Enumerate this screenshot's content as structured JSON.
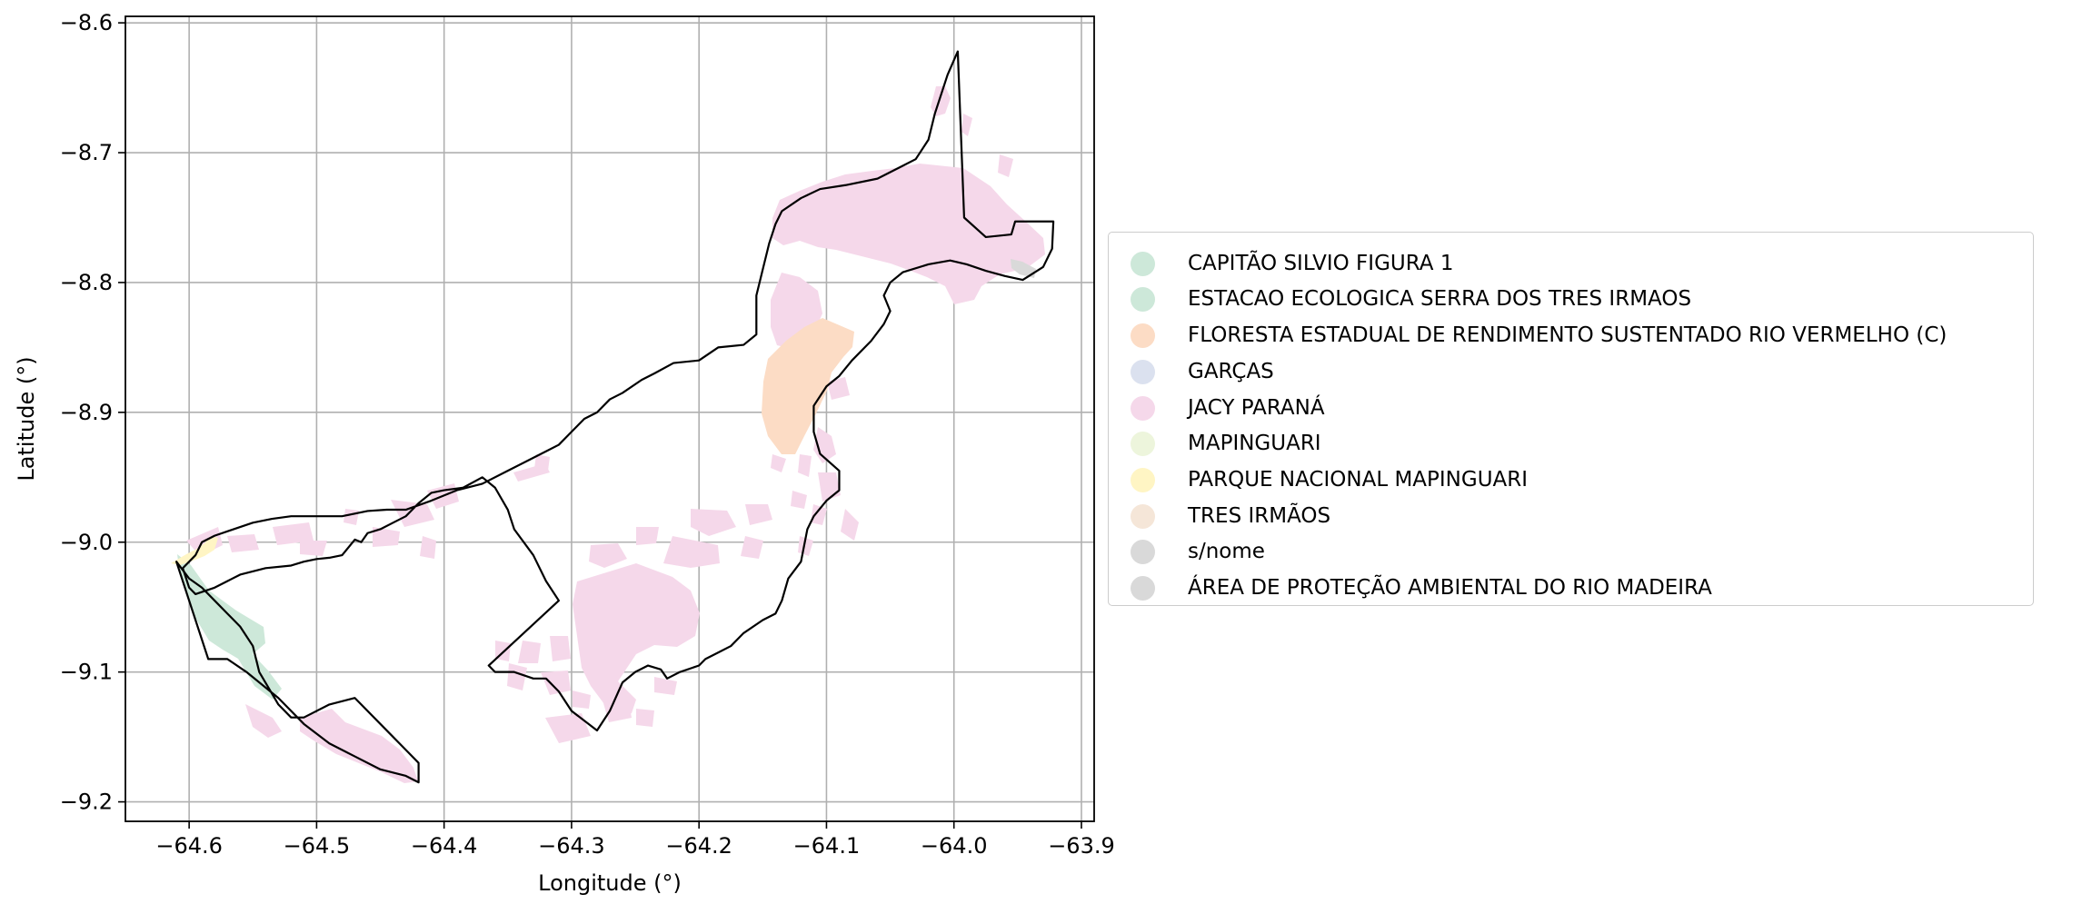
{
  "chart_data": {
    "type": "map",
    "xlabel": "Longitude (°)",
    "ylabel": "Latitude (°)",
    "xlim": [
      -64.65,
      -63.89
    ],
    "ylim": [
      -9.215,
      -8.595
    ],
    "xticks": [
      -64.6,
      -64.5,
      -64.4,
      -64.3,
      -64.2,
      -64.1,
      -64.0,
      -63.9
    ],
    "yticks": [
      -8.6,
      -8.7,
      -8.8,
      -8.9,
      -9.0,
      -9.1,
      -9.2
    ],
    "xtick_labels": [
      "−64.6",
      "−64.5",
      "−64.4",
      "−64.3",
      "−64.2",
      "−64.1",
      "−64.0",
      "−63.9"
    ],
    "ytick_labels": [
      "−8.6",
      "−8.7",
      "−8.8",
      "−8.9",
      "−9.0",
      "−9.1",
      "−9.2"
    ],
    "grid": true,
    "legend_position": "right",
    "legend": [
      {
        "label": "CAPITÃO SILVIO FIGURA 1",
        "color": "#cde8d9"
      },
      {
        "label": "ESTACAO ECOLOGICA SERRA DOS TRES IRMAOS",
        "color": "#cde8d9"
      },
      {
        "label": "FLORESTA ESTADUAL DE RENDIMENTO SUSTENTADO RIO VERMELHO (C)",
        "color": "#fcdcc5"
      },
      {
        "label": "GARÇAS",
        "color": "#dbe1ef"
      },
      {
        "label": "JACY PARANÁ",
        "color": "#f5d8ea"
      },
      {
        "label": "MAPINGUARI",
        "color": "#edf5dc"
      },
      {
        "label": "PARQUE NACIONAL MAPINGUARI",
        "color": "#fff5c4"
      },
      {
        "label": "TRES IRMÃOS",
        "color": "#f5e6d8"
      },
      {
        "label": "s/nome",
        "color": "#d9d9d9"
      },
      {
        "label": "ÁREA DE PROTEÇÃO AMBIENTAL DO RIO MADEIRA",
        "color": "#d9d9d9"
      }
    ],
    "boundary_polygons": [
      [
        [
          -63.997,
          -8.622
        ],
        [
          -63.992,
          -8.75
        ],
        [
          -63.975,
          -8.765
        ],
        [
          -63.955,
          -8.763
        ],
        [
          -63.952,
          -8.753
        ],
        [
          -63.922,
          -8.753
        ],
        [
          -63.923,
          -8.774
        ],
        [
          -63.93,
          -8.788
        ],
        [
          -63.946,
          -8.798
        ],
        [
          -63.96,
          -8.795
        ],
        [
          -63.975,
          -8.791
        ],
        [
          -63.99,
          -8.786
        ],
        [
          -64.003,
          -8.783
        ],
        [
          -64.02,
          -8.786
        ],
        [
          -64.04,
          -8.792
        ],
        [
          -64.05,
          -8.8
        ],
        [
          -64.055,
          -8.81
        ],
        [
          -64.05,
          -8.822
        ],
        [
          -64.055,
          -8.832
        ],
        [
          -64.065,
          -8.845
        ],
        [
          -64.08,
          -8.86
        ],
        [
          -64.09,
          -8.872
        ],
        [
          -64.1,
          -8.88
        ],
        [
          -64.11,
          -8.895
        ],
        [
          -64.11,
          -8.915
        ],
        [
          -64.105,
          -8.932
        ],
        [
          -64.09,
          -8.945
        ],
        [
          -64.09,
          -8.96
        ],
        [
          -64.1,
          -8.968
        ],
        [
          -64.11,
          -8.98
        ],
        [
          -64.115,
          -8.99
        ],
        [
          -64.12,
          -9.015
        ],
        [
          -64.13,
          -9.028
        ],
        [
          -64.135,
          -9.045
        ],
        [
          -64.14,
          -9.055
        ],
        [
          -64.15,
          -9.06
        ],
        [
          -64.165,
          -9.07
        ],
        [
          -64.175,
          -9.08
        ],
        [
          -64.185,
          -9.085
        ],
        [
          -64.195,
          -9.09
        ],
        [
          -64.2,
          -9.095
        ],
        [
          -64.215,
          -9.1
        ],
        [
          -64.225,
          -9.105
        ],
        [
          -64.23,
          -9.098
        ],
        [
          -64.24,
          -9.095
        ],
        [
          -64.25,
          -9.1
        ],
        [
          -64.26,
          -9.108
        ],
        [
          -64.27,
          -9.13
        ],
        [
          -64.28,
          -9.145
        ],
        [
          -64.3,
          -9.13
        ],
        [
          -64.31,
          -9.115
        ],
        [
          -64.32,
          -9.105
        ],
        [
          -64.33,
          -9.105
        ],
        [
          -64.345,
          -9.1
        ],
        [
          -64.36,
          -9.1
        ],
        [
          -64.365,
          -9.095
        ],
        [
          -64.31,
          -9.045
        ],
        [
          -64.32,
          -9.03
        ],
        [
          -64.33,
          -9.01
        ],
        [
          -64.345,
          -8.99
        ],
        [
          -64.35,
          -8.975
        ],
        [
          -64.36,
          -8.958
        ],
        [
          -64.37,
          -8.95
        ],
        [
          -64.385,
          -8.958
        ],
        [
          -64.4,
          -8.96
        ],
        [
          -64.41,
          -8.962
        ],
        [
          -64.42,
          -8.97
        ],
        [
          -64.43,
          -8.98
        ],
        [
          -64.44,
          -8.985
        ],
        [
          -64.45,
          -8.99
        ],
        [
          -64.46,
          -8.993
        ],
        [
          -64.465,
          -9.0
        ],
        [
          -64.47,
          -8.998
        ],
        [
          -64.48,
          -9.01
        ],
        [
          -64.49,
          -9.012
        ],
        [
          -64.5,
          -9.013
        ],
        [
          -64.51,
          -9.015
        ],
        [
          -64.52,
          -9.018
        ],
        [
          -64.54,
          -9.02
        ],
        [
          -64.56,
          -9.025
        ],
        [
          -64.57,
          -9.03
        ],
        [
          -64.58,
          -9.035
        ],
        [
          -64.595,
          -9.04
        ],
        [
          -64.6,
          -9.035
        ],
        [
          -64.605,
          -9.02
        ],
        [
          -64.595,
          -9.01
        ],
        [
          -64.59,
          -9.0
        ],
        [
          -64.58,
          -8.995
        ],
        [
          -64.565,
          -8.99
        ],
        [
          -64.55,
          -8.985
        ],
        [
          -64.535,
          -8.982
        ],
        [
          -64.52,
          -8.98
        ],
        [
          -64.5,
          -8.98
        ],
        [
          -64.48,
          -8.98
        ],
        [
          -64.46,
          -8.976
        ],
        [
          -64.445,
          -8.975
        ],
        [
          -64.43,
          -8.975
        ],
        [
          -64.41,
          -8.968
        ],
        [
          -64.39,
          -8.96
        ],
        [
          -64.37,
          -8.955
        ],
        [
          -64.35,
          -8.945
        ],
        [
          -64.33,
          -8.935
        ],
        [
          -64.32,
          -8.93
        ],
        [
          -64.31,
          -8.925
        ],
        [
          -64.3,
          -8.915
        ],
        [
          -64.29,
          -8.905
        ],
        [
          -64.28,
          -8.9
        ],
        [
          -64.27,
          -8.89
        ],
        [
          -64.26,
          -8.885
        ],
        [
          -64.245,
          -8.875
        ],
        [
          -64.235,
          -8.87
        ],
        [
          -64.22,
          -8.862
        ],
        [
          -64.2,
          -8.86
        ],
        [
          -64.185,
          -8.85
        ],
        [
          -64.165,
          -8.848
        ],
        [
          -64.155,
          -8.84
        ],
        [
          -64.155,
          -8.81
        ],
        [
          -64.15,
          -8.79
        ],
        [
          -64.145,
          -8.77
        ],
        [
          -64.14,
          -8.755
        ],
        [
          -64.135,
          -8.745
        ],
        [
          -64.12,
          -8.735
        ],
        [
          -64.105,
          -8.728
        ],
        [
          -64.085,
          -8.725
        ],
        [
          -64.06,
          -8.72
        ],
        [
          -64.04,
          -8.71
        ],
        [
          -64.03,
          -8.705
        ],
        [
          -64.02,
          -8.69
        ],
        [
          -64.015,
          -8.67
        ],
        [
          -64.005,
          -8.64
        ],
        [
          -63.997,
          -8.622
        ]
      ],
      [
        [
          -64.61,
          -9.015
        ],
        [
          -64.585,
          -9.09
        ],
        [
          -64.57,
          -9.09
        ],
        [
          -64.555,
          -9.1
        ],
        [
          -64.53,
          -9.12
        ],
        [
          -64.51,
          -9.14
        ],
        [
          -64.49,
          -9.155
        ],
        [
          -64.47,
          -9.165
        ],
        [
          -64.45,
          -9.175
        ],
        [
          -64.43,
          -9.18
        ],
        [
          -64.42,
          -9.185
        ],
        [
          -64.42,
          -9.17
        ],
        [
          -64.43,
          -9.16
        ],
        [
          -64.45,
          -9.14
        ],
        [
          -64.47,
          -9.12
        ],
        [
          -64.49,
          -9.125
        ],
        [
          -64.51,
          -9.135
        ],
        [
          -64.52,
          -9.135
        ],
        [
          -64.53,
          -9.125
        ],
        [
          -64.545,
          -9.1
        ],
        [
          -64.55,
          -9.08
        ],
        [
          -64.56,
          -9.065
        ],
        [
          -64.57,
          -9.055
        ],
        [
          -64.58,
          -9.045
        ],
        [
          -64.59,
          -9.035
        ],
        [
          -64.6,
          -9.028
        ],
        [
          -64.61,
          -9.015
        ]
      ]
    ],
    "pixel_map_note": "axes x: -64.65→-63.89, y: -8.595→-9.215"
  }
}
